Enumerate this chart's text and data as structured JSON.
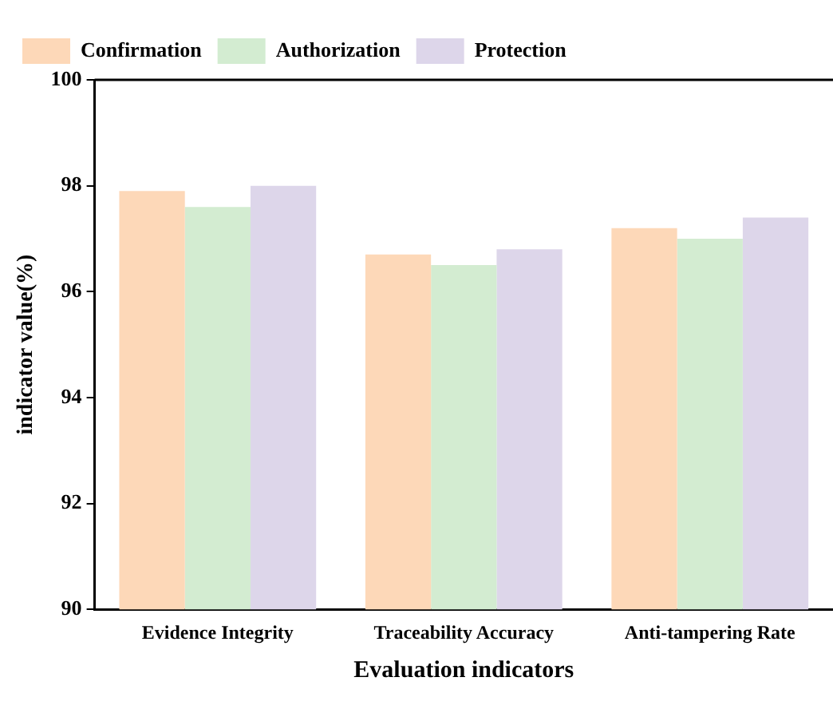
{
  "chart_data": {
    "type": "bar",
    "xlabel": "Evaluation indicators",
    "ylabel": "indicator value(%)",
    "categories": [
      "Evidence Integrity",
      "Traceability Accuracy",
      "Anti-tampering Rate"
    ],
    "series": [
      {
        "name": "Confirmation",
        "color": "#fdd8b8",
        "values": [
          97.9,
          96.7,
          97.2
        ]
      },
      {
        "name": "Authorization",
        "color": "#d3ecd1",
        "values": [
          97.6,
          96.5,
          97.0
        ]
      },
      {
        "name": "Protection",
        "color": "#ddd6ea",
        "values": [
          98.0,
          96.8,
          97.4
        ]
      }
    ],
    "ylim": [
      90,
      100
    ],
    "yticks": [
      90,
      92,
      94,
      96,
      98,
      100
    ],
    "grid": false,
    "legend": "top left"
  }
}
